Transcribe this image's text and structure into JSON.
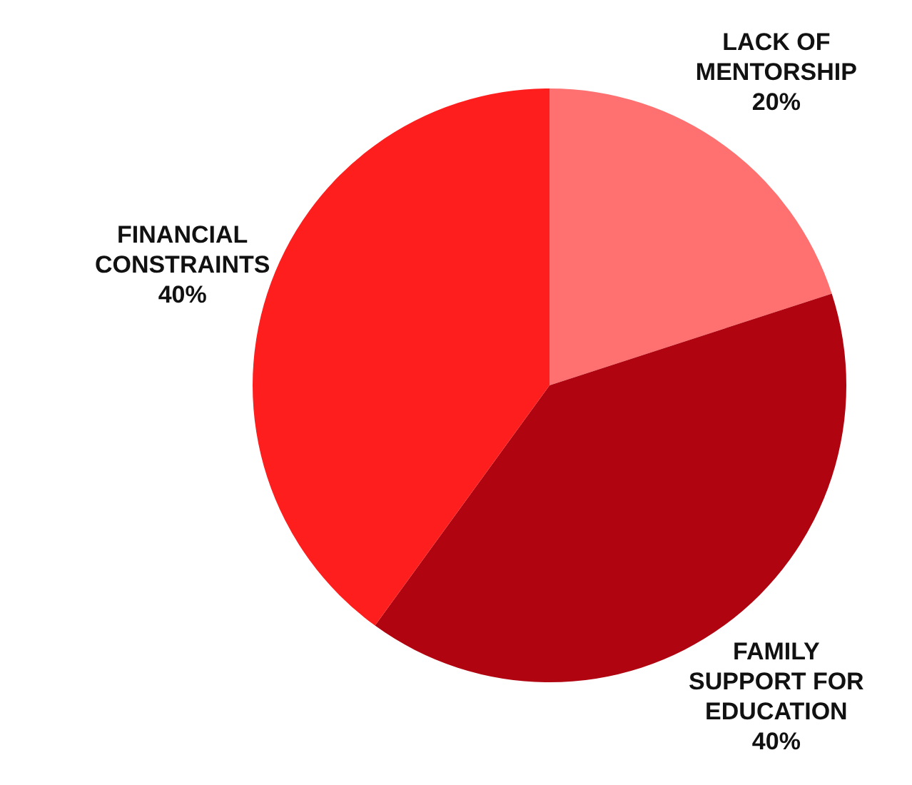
{
  "chart_data": {
    "type": "pie",
    "categories": [
      "LACK OF MENTORSHIP",
      "FAMILY SUPPORT FOR EDUCATION",
      "FINANCIAL CONSTRAINTS"
    ],
    "values": [
      20,
      40,
      40
    ],
    "colors": [
      "#ff7070",
      "#b00511",
      "#ff1e1e"
    ],
    "value_labels": [
      "20%",
      "40%",
      "40%"
    ],
    "legend": false
  }
}
